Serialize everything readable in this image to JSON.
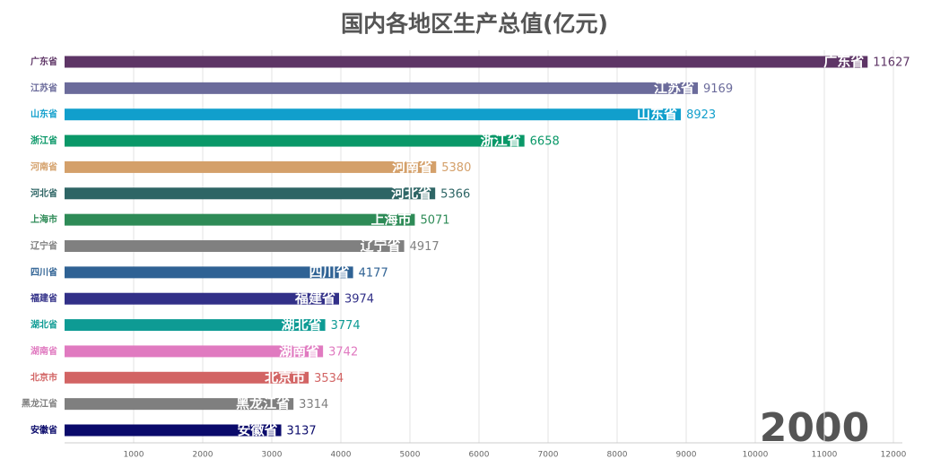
{
  "chart_data": {
    "type": "bar",
    "orientation": "horizontal",
    "title": "国内各地区生产总值(亿元)",
    "annotation": "2000",
    "categories": [
      "广东省",
      "江苏省",
      "山东省",
      "浙江省",
      "河南省",
      "河北省",
      "上海市",
      "辽宁省",
      "四川省",
      "福建省",
      "湖北省",
      "湖南省",
      "北京市",
      "黑龙江省",
      "安徽省"
    ],
    "values": [
      11627,
      9169,
      8923,
      6658,
      5380,
      5366,
      5071,
      4917,
      4177,
      3974,
      3774,
      3742,
      3534,
      3314,
      3137
    ],
    "colors": [
      "#5e3566",
      "#6b6b9b",
      "#119fcc",
      "#0a9868",
      "#d4a06a",
      "#2e6565",
      "#2e8b57",
      "#808080",
      "#2f6294",
      "#323088",
      "#0e9b94",
      "#e07ac0",
      "#d26464",
      "#7f7f7f",
      "#0a0a6b"
    ],
    "xlim": [
      0,
      12000
    ],
    "xticks": [
      1000,
      2000,
      3000,
      4000,
      5000,
      6000,
      7000,
      8000,
      9000,
      10000,
      11000,
      12000
    ],
    "grid": true
  }
}
